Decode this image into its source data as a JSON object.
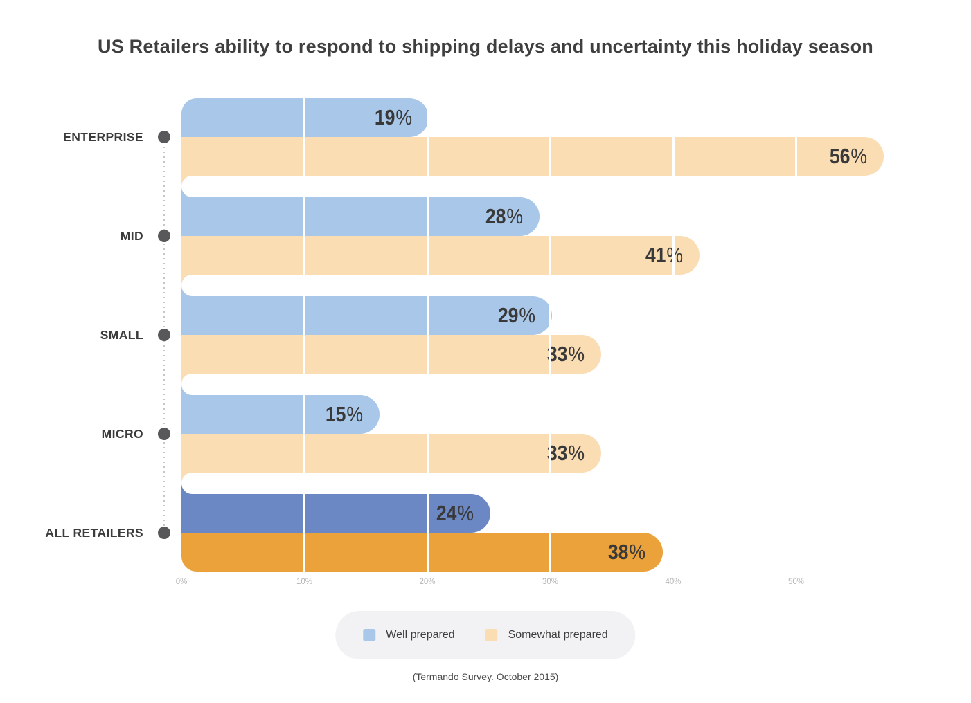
{
  "chart_data": {
    "type": "bar",
    "orientation": "horizontal",
    "title": "US Retailers ability to respond to shipping delays and uncertainty this holiday season",
    "source": "(Termando Survey. October 2015)",
    "categories": [
      "ENTERPRISE",
      "MID",
      "SMALL",
      "MICRO",
      "ALL RETAILERS"
    ],
    "highlighted": [
      false,
      false,
      false,
      false,
      true
    ],
    "series": [
      {
        "name": "Well prepared",
        "values": [
          19,
          28,
          29,
          15,
          24
        ],
        "color": "#A9C7E8",
        "highlight_color": "#6B88C4"
      },
      {
        "name": "Somewhat prepared",
        "values": [
          56,
          41,
          33,
          33,
          38
        ],
        "color": "#FBDDB4",
        "highlight_color": "#EBA23B"
      }
    ],
    "value_suffix": "%",
    "xlim": [
      0,
      60
    ],
    "x_ticks": [
      "0%",
      "10%",
      "20%",
      "30%",
      "40%",
      "50%"
    ],
    "grid": "white vertical lines every 10% drawn over bars",
    "legend_position": "bottom-center"
  },
  "colors": {
    "background": "#FFFFFF",
    "title_text": "#3F3F3F",
    "value_label_text": "#393939",
    "category_label_text": "#3C3C3C",
    "category_dot": "#58585A",
    "connector_dotted_line": "#C6C6C8",
    "tick_label_text": "#B5B5B5",
    "legend_background": "#F2F2F4",
    "legend_label_text": "#3E3E3E",
    "source_text": "#4A4A4A",
    "gridline": "#FFFFFF"
  }
}
